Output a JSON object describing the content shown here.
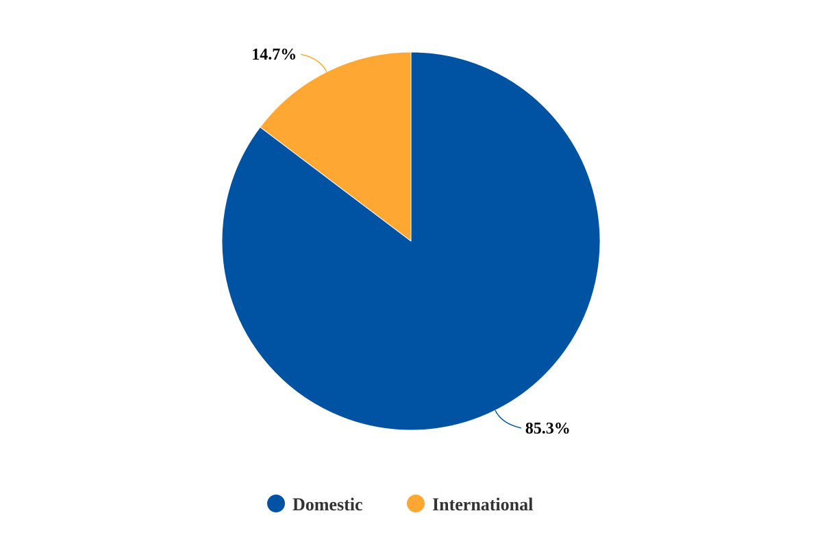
{
  "chart_data": {
    "type": "pie",
    "categories": [
      "Domestic",
      "International"
    ],
    "values": [
      85.3,
      14.7
    ],
    "data_labels": [
      "85.3%",
      "14.7%"
    ],
    "colors": [
      "#0052a3",
      "#ffa733"
    ],
    "start": "top, clockwise",
    "legend_position": "bottom"
  }
}
